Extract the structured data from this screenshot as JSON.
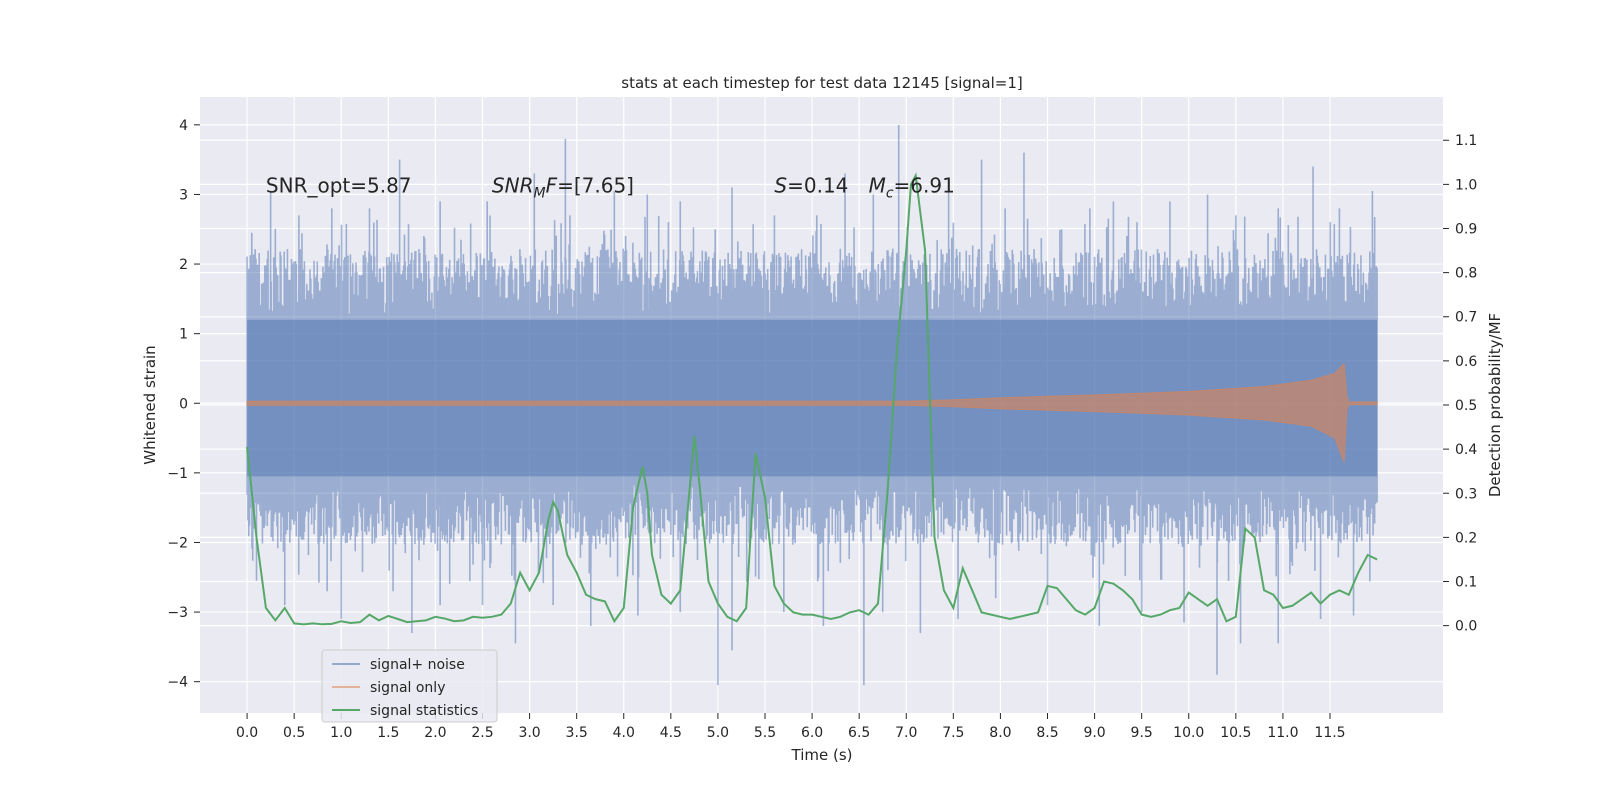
{
  "chart_data": {
    "type": "line",
    "title": "stats at each timestep for test data 12145 [signal=1]",
    "xlabel": "Time (s)",
    "ylabel_left": "Whitened strain",
    "ylabel_right": "Detection probability/MF",
    "xlim": [
      -0.5,
      12.7
    ],
    "ylim_left": [
      -4.45,
      4.4
    ],
    "ylim_right": [
      -0.198,
      1.198
    ],
    "x_ticks": [
      0.0,
      0.5,
      1.0,
      1.5,
      2.0,
      2.5,
      3.0,
      3.5,
      4.0,
      4.5,
      5.0,
      5.5,
      6.0,
      6.5,
      7.0,
      7.5,
      8.0,
      8.5,
      9.0,
      9.5,
      10.0,
      10.5,
      11.0,
      11.5
    ],
    "x_tick_labels": [
      "0.0",
      "0.5",
      "1.0",
      "1.5",
      "2.0",
      "2.5",
      "3.0",
      "3.5",
      "4.0",
      "4.5",
      "5.0",
      "5.5",
      "6.0",
      "6.5",
      "7.0",
      "7.5",
      "8.0",
      "8.5",
      "9.0",
      "9.5",
      "10.0",
      "10.5",
      "11.0",
      "11.5"
    ],
    "y_left_ticks": [
      -4,
      -3,
      -2,
      -1,
      0,
      1,
      2,
      3,
      4
    ],
    "y_left_tick_labels": [
      "−4",
      "−3",
      "−2",
      "−1",
      "0",
      "1",
      "2",
      "3",
      "4"
    ],
    "y_right_ticks": [
      0.0,
      0.1,
      0.2,
      0.3,
      0.4,
      0.5,
      0.6,
      0.7,
      0.8,
      0.9,
      1.0,
      1.1
    ],
    "y_right_tick_labels": [
      "0.0",
      "0.1",
      "0.2",
      "0.3",
      "0.4",
      "0.5",
      "0.6",
      "0.7",
      "0.8",
      "0.9",
      "1.0",
      "1.1"
    ],
    "grid": true,
    "legend_position": "lower-left",
    "annotations": [
      {
        "text": "SNR_opt=5.87",
        "x": 0.2,
        "y": 3.1
      },
      {
        "text": "SNR_MF=[7.65]",
        "x": 2.6,
        "y": 3.1
      },
      {
        "text": "S=0.14",
        "x": 5.6,
        "y": 3.1
      },
      {
        "text": "M_c=6.91",
        "x": 6.6,
        "y": 3.1
      }
    ],
    "series": [
      {
        "name": "signal+ noise",
        "axis": "left",
        "kind": "noise",
        "color": "#4c72b0",
        "x_range": [
          0.0,
          12.0
        ],
        "band_core": [
          -1.6,
          1.75
        ],
        "peaks_positive": [
          [
            0.05,
            2.45
          ],
          [
            0.25,
            3.05
          ],
          [
            0.55,
            2.7
          ],
          [
            0.9,
            2.8
          ],
          [
            1.3,
            2.8
          ],
          [
            1.62,
            3.5
          ],
          [
            2.05,
            2.9
          ],
          [
            2.55,
            2.9
          ],
          [
            3.05,
            3.3
          ],
          [
            3.38,
            3.8
          ],
          [
            3.9,
            3.05
          ],
          [
            4.25,
            3.0
          ],
          [
            4.6,
            2.9
          ],
          [
            5.15,
            3.1
          ],
          [
            5.6,
            2.7
          ],
          [
            6.05,
            2.7
          ],
          [
            6.35,
            3.3
          ],
          [
            6.65,
            3.0
          ],
          [
            6.92,
            4.0
          ],
          [
            7.45,
            3.2
          ],
          [
            7.8,
            3.5
          ],
          [
            8.05,
            2.8
          ],
          [
            8.25,
            3.6
          ],
          [
            8.65,
            2.5
          ],
          [
            8.95,
            2.8
          ],
          [
            9.2,
            2.9
          ],
          [
            9.45,
            2.6
          ],
          [
            9.8,
            2.9
          ],
          [
            10.2,
            3.0
          ],
          [
            10.5,
            2.7
          ],
          [
            10.95,
            2.8
          ],
          [
            11.32,
            3.4
          ],
          [
            11.6,
            2.8
          ],
          [
            11.95,
            3.05
          ]
        ],
        "peaks_negative": [
          [
            0.1,
            -2.55
          ],
          [
            0.4,
            -2.9
          ],
          [
            0.85,
            -2.7
          ],
          [
            1.0,
            -3.1
          ],
          [
            1.55,
            -2.7
          ],
          [
            1.75,
            -3.3
          ],
          [
            2.05,
            -2.9
          ],
          [
            2.5,
            -2.9
          ],
          [
            2.85,
            -3.45
          ],
          [
            3.25,
            -2.9
          ],
          [
            3.65,
            -3.2
          ],
          [
            4.15,
            -3.05
          ],
          [
            4.6,
            -3.0
          ],
          [
            5.0,
            -4.05
          ],
          [
            5.15,
            -3.55
          ],
          [
            5.7,
            -3.0
          ],
          [
            6.12,
            -3.2
          ],
          [
            6.55,
            -4.05
          ],
          [
            6.75,
            -3.0
          ],
          [
            7.15,
            -3.3
          ],
          [
            7.55,
            -3.1
          ],
          [
            7.95,
            -2.8
          ],
          [
            8.5,
            -2.9
          ],
          [
            9.05,
            -3.2
          ],
          [
            9.5,
            -3.0
          ],
          [
            9.95,
            -3.15
          ],
          [
            10.3,
            -3.9
          ],
          [
            10.55,
            -3.45
          ],
          [
            10.95,
            -3.45
          ],
          [
            11.4,
            -3.1
          ],
          [
            11.75,
            -3.05
          ]
        ]
      },
      {
        "name": "signal only",
        "axis": "left",
        "kind": "envelope",
        "color": "#dd8452",
        "envelope": [
          [
            0.0,
            0.03
          ],
          [
            7.0,
            0.03
          ],
          [
            7.5,
            0.05
          ],
          [
            8.0,
            0.08
          ],
          [
            9.0,
            0.12
          ],
          [
            10.0,
            0.17
          ],
          [
            10.8,
            0.24
          ],
          [
            11.3,
            0.33
          ],
          [
            11.55,
            0.43
          ],
          [
            11.65,
            0.57
          ],
          [
            11.68,
            0.1
          ],
          [
            11.7,
            0.02
          ],
          [
            12.0,
            0.02
          ]
        ],
        "envelope_neg": [
          [
            0.0,
            -0.03
          ],
          [
            7.0,
            -0.03
          ],
          [
            7.5,
            -0.05
          ],
          [
            8.0,
            -0.08
          ],
          [
            9.0,
            -0.12
          ],
          [
            10.0,
            -0.17
          ],
          [
            10.8,
            -0.24
          ],
          [
            11.3,
            -0.33
          ],
          [
            11.55,
            -0.5
          ],
          [
            11.65,
            -0.85
          ],
          [
            11.68,
            -0.1
          ],
          [
            11.7,
            -0.02
          ],
          [
            12.0,
            -0.02
          ]
        ]
      },
      {
        "name": "signal statistics",
        "axis": "right",
        "kind": "line",
        "color": "#55a868",
        "x": [
          0.0,
          0.1,
          0.2,
          0.3,
          0.4,
          0.5,
          0.6,
          0.7,
          0.8,
          0.9,
          1.0,
          1.1,
          1.2,
          1.3,
          1.4,
          1.5,
          1.6,
          1.7,
          1.8,
          1.9,
          2.0,
          2.1,
          2.2,
          2.3,
          2.4,
          2.5,
          2.6,
          2.7,
          2.8,
          2.9,
          3.0,
          3.1,
          3.2,
          3.25,
          3.3,
          3.4,
          3.5,
          3.6,
          3.7,
          3.8,
          3.9,
          4.0,
          4.1,
          4.2,
          4.25,
          4.3,
          4.4,
          4.5,
          4.6,
          4.7,
          4.75,
          4.8,
          4.9,
          5.0,
          5.1,
          5.2,
          5.3,
          5.4,
          5.5,
          5.6,
          5.7,
          5.8,
          5.9,
          6.0,
          6.1,
          6.2,
          6.3,
          6.4,
          6.5,
          6.6,
          6.7,
          6.8,
          6.9,
          7.0,
          7.05,
          7.1,
          7.2,
          7.3,
          7.4,
          7.5,
          7.6,
          7.7,
          7.8,
          7.9,
          8.0,
          8.1,
          8.2,
          8.3,
          8.4,
          8.5,
          8.6,
          8.7,
          8.8,
          8.9,
          9.0,
          9.1,
          9.2,
          9.3,
          9.4,
          9.5,
          9.6,
          9.7,
          9.8,
          9.9,
          10.0,
          10.1,
          10.2,
          10.3,
          10.4,
          10.5,
          10.6,
          10.7,
          10.8,
          10.9,
          11.0,
          11.1,
          11.2,
          11.3,
          11.4,
          11.5,
          11.6,
          11.7,
          11.8,
          11.9,
          12.0
        ],
        "values": [
          0.405,
          0.2,
          0.04,
          0.012,
          0.04,
          0.005,
          0.003,
          0.005,
          0.003,
          0.004,
          0.01,
          0.006,
          0.008,
          0.025,
          0.012,
          0.022,
          0.015,
          0.008,
          0.01,
          0.012,
          0.02,
          0.016,
          0.01,
          0.012,
          0.02,
          0.018,
          0.02,
          0.025,
          0.05,
          0.12,
          0.08,
          0.12,
          0.24,
          0.28,
          0.26,
          0.16,
          0.12,
          0.07,
          0.06,
          0.055,
          0.01,
          0.04,
          0.27,
          0.36,
          0.3,
          0.16,
          0.07,
          0.05,
          0.08,
          0.31,
          0.43,
          0.33,
          0.1,
          0.05,
          0.02,
          0.01,
          0.04,
          0.39,
          0.29,
          0.09,
          0.05,
          0.03,
          0.025,
          0.025,
          0.02,
          0.015,
          0.02,
          0.03,
          0.035,
          0.025,
          0.05,
          0.3,
          0.62,
          0.85,
          1.0,
          1.02,
          0.85,
          0.2,
          0.08,
          0.04,
          0.13,
          0.08,
          0.03,
          0.025,
          0.02,
          0.015,
          0.02,
          0.025,
          0.03,
          0.09,
          0.085,
          0.06,
          0.035,
          0.025,
          0.04,
          0.1,
          0.095,
          0.08,
          0.06,
          0.025,
          0.02,
          0.025,
          0.035,
          0.04,
          0.075,
          0.06,
          0.045,
          0.06,
          0.01,
          0.02,
          0.22,
          0.2,
          0.08,
          0.07,
          0.04,
          0.045,
          0.06,
          0.075,
          0.05,
          0.07,
          0.08,
          0.07,
          0.12,
          0.16,
          0.15
        ]
      }
    ]
  }
}
